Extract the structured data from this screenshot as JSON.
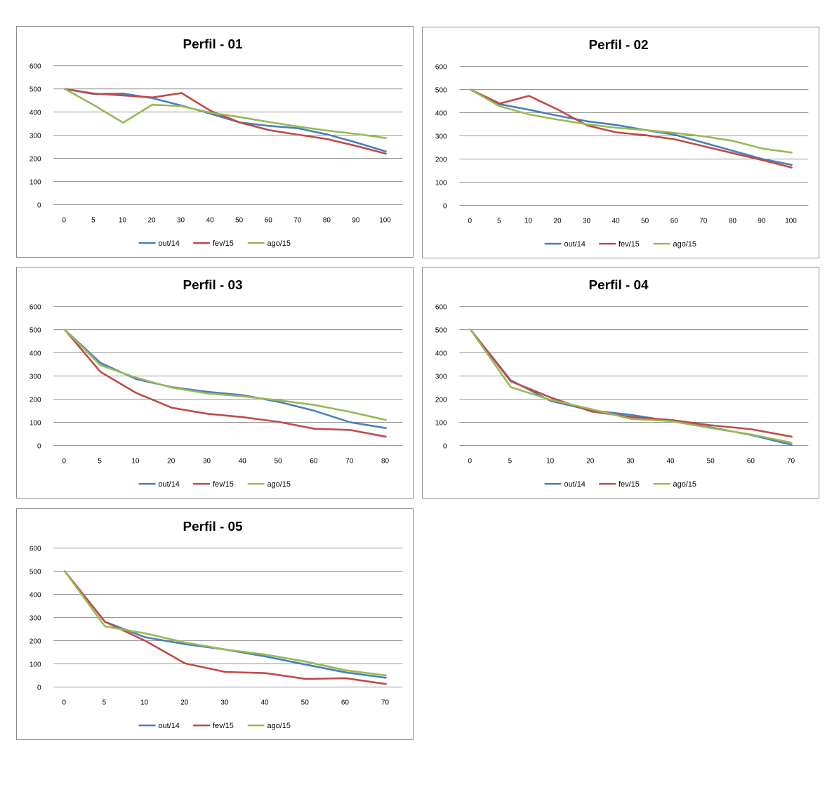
{
  "chart_data": [
    {
      "type": "line",
      "title": "Perfil - 01",
      "categories": [
        "0",
        "5",
        "10",
        "20",
        "30",
        "40",
        "50",
        "60",
        "70",
        "80",
        "90",
        "100"
      ],
      "ylim": [
        0,
        600
      ],
      "yticks": [
        "0",
        "100",
        "200",
        "300",
        "400",
        "500",
        "600"
      ],
      "grid": true,
      "legend": "bottom",
      "series": [
        {
          "name": "out/14",
          "color": "#4a7ebb",
          "values": [
            500,
            478,
            480,
            460,
            428,
            393,
            355,
            340,
            330,
            303,
            268,
            230
          ]
        },
        {
          "name": "fev/15",
          "color": "#be4b48",
          "values": [
            500,
            480,
            472,
            463,
            482,
            405,
            355,
            322,
            302,
            283,
            253,
            220
          ]
        },
        {
          "name": "ago/15",
          "color": "#98b954",
          "values": [
            500,
            430,
            354,
            432,
            425,
            397,
            378,
            357,
            337,
            320,
            305,
            288
          ]
        }
      ]
    },
    {
      "type": "line",
      "title": "Perfil - 02",
      "categories": [
        "0",
        "5",
        "10",
        "20",
        "30",
        "40",
        "50",
        "60",
        "70",
        "80",
        "90",
        "100"
      ],
      "ylim": [
        0,
        600
      ],
      "yticks": [
        "0",
        "100",
        "200",
        "300",
        "400",
        "500",
        "600"
      ],
      "grid": true,
      "legend": "bottom",
      "series": [
        {
          "name": "out/14",
          "color": "#4a7ebb",
          "values": [
            500,
            437,
            413,
            387,
            363,
            347,
            325,
            305,
            270,
            235,
            200,
            175
          ]
        },
        {
          "name": "fev/15",
          "color": "#be4b48",
          "values": [
            500,
            440,
            473,
            413,
            345,
            315,
            303,
            285,
            255,
            225,
            195,
            163
          ]
        },
        {
          "name": "ago/15",
          "color": "#98b954",
          "values": [
            500,
            428,
            393,
            370,
            350,
            335,
            325,
            313,
            298,
            278,
            245,
            228
          ]
        }
      ]
    },
    {
      "type": "line",
      "title": "Perfil - 03",
      "categories": [
        "0",
        "5",
        "10",
        "20",
        "30",
        "40",
        "50",
        "60",
        "70",
        "80"
      ],
      "ylim": [
        0,
        600
      ],
      "yticks": [
        "0",
        "100",
        "200",
        "300",
        "400",
        "500",
        "600"
      ],
      "grid": true,
      "legend": "bottom",
      "series": [
        {
          "name": "out/14",
          "color": "#4a7ebb",
          "values": [
            500,
            357,
            287,
            252,
            232,
            217,
            188,
            150,
            100,
            75
          ]
        },
        {
          "name": "fev/15",
          "color": "#be4b48",
          "values": [
            500,
            318,
            227,
            163,
            137,
            122,
            102,
            72,
            67,
            38
          ]
        },
        {
          "name": "ago/15",
          "color": "#98b954",
          "values": [
            500,
            347,
            293,
            250,
            225,
            212,
            195,
            175,
            145,
            110
          ]
        }
      ]
    },
    {
      "type": "line",
      "title": "Perfil - 04",
      "categories": [
        "0",
        "5",
        "10",
        "20",
        "30",
        "40",
        "50",
        "60",
        "70"
      ],
      "ylim": [
        0,
        600
      ],
      "yticks": [
        "0",
        "100",
        "200",
        "300",
        "400",
        "500",
        "600"
      ],
      "grid": true,
      "legend": "bottom",
      "series": [
        {
          "name": "out/14",
          "color": "#4a7ebb",
          "values": [
            500,
            282,
            192,
            152,
            132,
            105,
            78,
            45,
            3
          ]
        },
        {
          "name": "fev/15",
          "color": "#be4b48",
          "values": [
            500,
            277,
            207,
            147,
            123,
            110,
            87,
            70,
            38
          ]
        },
        {
          "name": "ago/15",
          "color": "#98b954",
          "values": [
            500,
            252,
            197,
            157,
            115,
            105,
            75,
            47,
            12
          ]
        }
      ]
    },
    {
      "type": "line",
      "title": "Perfil - 05",
      "categories": [
        "0",
        "5",
        "10",
        "20",
        "30",
        "40",
        "50",
        "60",
        "70"
      ],
      "ylim": [
        0,
        600
      ],
      "yticks": [
        "0",
        "100",
        "200",
        "300",
        "400",
        "500",
        "600"
      ],
      "grid": true,
      "legend": "bottom",
      "series": [
        {
          "name": "out/14",
          "color": "#4a7ebb",
          "values": [
            500,
            282,
            215,
            185,
            162,
            132,
            97,
            63,
            40
          ]
        },
        {
          "name": "fev/15",
          "color": "#be4b48",
          "values": [
            500,
            282,
            200,
            102,
            65,
            60,
            35,
            38,
            13
          ]
        },
        {
          "name": "ago/15",
          "color": "#98b954",
          "values": [
            500,
            262,
            232,
            192,
            162,
            140,
            110,
            72,
            50
          ]
        }
      ]
    }
  ]
}
